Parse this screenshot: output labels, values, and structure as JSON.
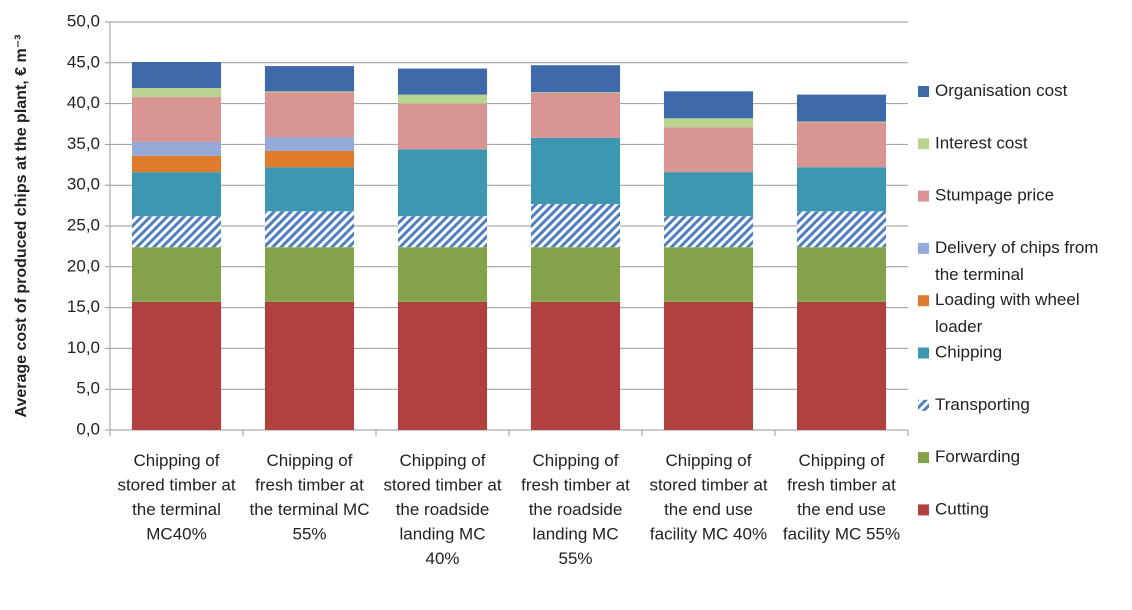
{
  "chart_data": {
    "type": "stacked_bar",
    "y_label": "Average cost of produced chips at the plant, € m⁻³",
    "categories": [
      "Chipping of stored timber at the terminal MC40%",
      "Chipping of fresh timber at the terminal MC 55%",
      "Chipping of stored timber at the roadside landing MC 40%",
      "Chipping of fresh timber at the roadside landing MC 55%",
      "Chipping of stored timber at the end use facility MC 40%",
      "Chipping of fresh timber at the end use facility MC 55%"
    ],
    "series": [
      {
        "name": "Cutting",
        "color": "#b0413e",
        "values": [
          15.7,
          15.7,
          15.7,
          15.7,
          15.7,
          15.7
        ]
      },
      {
        "name": "Forwarding",
        "color": "#84a24c",
        "values": [
          6.7,
          6.7,
          6.7,
          6.7,
          6.7,
          6.7
        ]
      },
      {
        "name": "Transporting",
        "color": "#4f7fc0",
        "pattern": "hatch",
        "values": [
          3.8,
          4.4,
          3.8,
          5.3,
          3.8,
          4.4
        ]
      },
      {
        "name": "Chipping",
        "color": "#3d97b0",
        "values": [
          5.4,
          5.4,
          8.2,
          8.1,
          5.4,
          5.4
        ]
      },
      {
        "name": "Loading with wheel loader",
        "color": "#e07b2d",
        "values": [
          2.0,
          2.0,
          0,
          0,
          0,
          0
        ]
      },
      {
        "name": "Delivery of chips from the terminal",
        "color": "#93a9d8",
        "values": [
          1.7,
          1.7,
          0,
          0,
          0,
          0
        ]
      },
      {
        "name": "Stumpage price",
        "color": "#d99594",
        "values": [
          5.5,
          5.5,
          5.6,
          5.5,
          5.5,
          5.5
        ]
      },
      {
        "name": "Interest cost",
        "color": "#b9d48e",
        "values": [
          1.1,
          0.1,
          1.1,
          0.1,
          1.1,
          0.1
        ]
      },
      {
        "name": "Organisation cost",
        "color": "#3e6aaa",
        "values": [
          3.2,
          3.1,
          3.2,
          3.3,
          3.3,
          3.3
        ]
      }
    ],
    "ylim": [
      0,
      50
    ],
    "yticks": [
      {
        "value": 0,
        "label": "0,0"
      },
      {
        "value": 5,
        "label": "5,0"
      },
      {
        "value": 10,
        "label": "10,0"
      },
      {
        "value": 15,
        "label": "15,0"
      },
      {
        "value": 20,
        "label": "20,0"
      },
      {
        "value": 25,
        "label": "25,0"
      },
      {
        "value": 30,
        "label": "30,0"
      },
      {
        "value": 35,
        "label": "35,0"
      },
      {
        "value": 40,
        "label": "40,0"
      },
      {
        "value": 45,
        "label": "45,0"
      },
      {
        "value": 50,
        "label": "50,0"
      }
    ],
    "grid": true,
    "legend": "right"
  }
}
